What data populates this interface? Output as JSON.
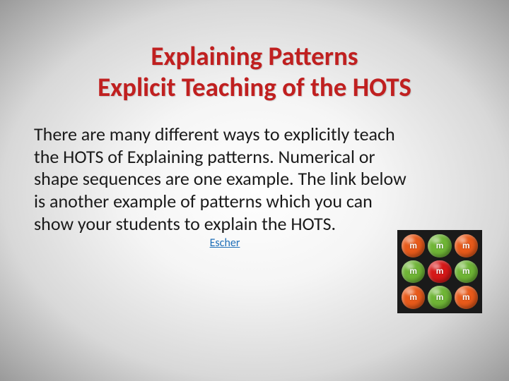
{
  "title": {
    "line1": "Explaining Patterns",
    "line2": "Explicit Teaching of the HOTS",
    "color": "#c02020",
    "fontsize": 37,
    "fontweight": "bold",
    "align": "center"
  },
  "body": {
    "text": "There are many different ways to explicitly teach the HOTS of Explaining patterns. Numerical or shape sequences are one example.  The link below is another example of patterns which you can show your students to explain the HOTS.",
    "fontsize": 26,
    "color": "#1a1a1a"
  },
  "link": {
    "label": "Escher",
    "color": "#1f6fb8"
  },
  "slide_bg": {
    "type": "radial-gradient",
    "center_color": "#ffffff",
    "edge_color": "#9a9a9a"
  },
  "image": {
    "description": "mm-candies-3x3-grid",
    "grid": {
      "rows": 3,
      "cols": 3
    },
    "bg_color": "#1a1a1a",
    "cell_letters": [
      "m",
      "m",
      "m",
      "m",
      "m",
      "m",
      "m",
      "m",
      "m"
    ],
    "cell_colors": [
      "#e85a1a",
      "#6fb536",
      "#e85a1a",
      "#6fb536",
      "#d61818",
      "#6fb536",
      "#e85a1a",
      "#6fb536",
      "#e85a1a"
    ],
    "letter_color": "#ffffff"
  }
}
